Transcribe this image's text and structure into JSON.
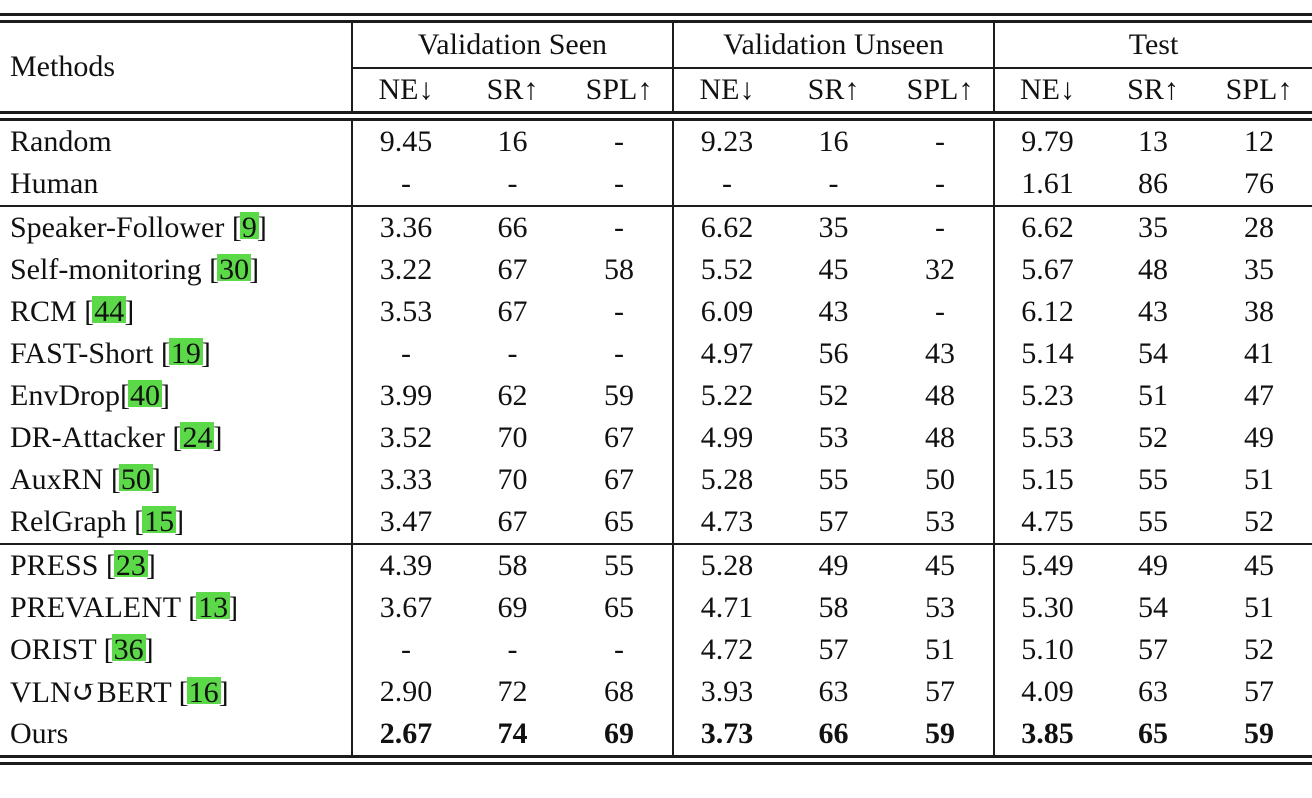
{
  "table": {
    "methods_header": "Methods",
    "citation_box_color": "#5cd948",
    "groups": [
      {
        "label": "Validation Seen",
        "metrics": [
          "NE↓",
          "SR↑",
          "SPL↑"
        ]
      },
      {
        "label": "Validation Unseen",
        "metrics": [
          "NE↓",
          "SR↑",
          "SPL↑"
        ]
      },
      {
        "label": "Test",
        "metrics": [
          "NE↓",
          "SR↑",
          "SPL↑"
        ]
      }
    ],
    "rows": [
      {
        "name": "Random",
        "cite": null,
        "space_before_cite": true,
        "bold_values": false,
        "group_start": false,
        "values": [
          "9.45",
          "16",
          "-",
          "9.23",
          "16",
          "-",
          "9.79",
          "13",
          "12"
        ]
      },
      {
        "name": "Human",
        "cite": null,
        "space_before_cite": true,
        "bold_values": false,
        "group_start": false,
        "values": [
          "-",
          "-",
          "-",
          "-",
          "-",
          "-",
          "1.61",
          "86",
          "76"
        ]
      },
      {
        "name": "Speaker-Follower",
        "cite": "9",
        "space_before_cite": true,
        "bold_values": false,
        "group_start": true,
        "values": [
          "3.36",
          "66",
          "-",
          "6.62",
          "35",
          "-",
          "6.62",
          "35",
          "28"
        ]
      },
      {
        "name": "Self-monitoring",
        "cite": "30",
        "space_before_cite": true,
        "bold_values": false,
        "group_start": false,
        "values": [
          "3.22",
          "67",
          "58",
          "5.52",
          "45",
          "32",
          "5.67",
          "48",
          "35"
        ]
      },
      {
        "name": "RCM",
        "cite": "44",
        "space_before_cite": true,
        "bold_values": false,
        "group_start": false,
        "values": [
          "3.53",
          "67",
          "-",
          "6.09",
          "43",
          "-",
          "6.12",
          "43",
          "38"
        ]
      },
      {
        "name": "FAST-Short",
        "cite": "19",
        "space_before_cite": true,
        "bold_values": false,
        "group_start": false,
        "values": [
          "-",
          "-",
          "-",
          "4.97",
          "56",
          "43",
          "5.14",
          "54",
          "41"
        ]
      },
      {
        "name": "EnvDrop",
        "cite": "40",
        "space_before_cite": false,
        "bold_values": false,
        "group_start": false,
        "values": [
          "3.99",
          "62",
          "59",
          "5.22",
          "52",
          "48",
          "5.23",
          "51",
          "47"
        ]
      },
      {
        "name": "DR-Attacker",
        "cite": "24",
        "space_before_cite": true,
        "bold_values": false,
        "group_start": false,
        "values": [
          "3.52",
          "70",
          "67",
          "4.99",
          "53",
          "48",
          "5.53",
          "52",
          "49"
        ]
      },
      {
        "name": "AuxRN",
        "cite": "50",
        "space_before_cite": true,
        "bold_values": false,
        "group_start": false,
        "values": [
          "3.33",
          "70",
          "67",
          "5.28",
          "55",
          "50",
          "5.15",
          "55",
          "51"
        ]
      },
      {
        "name": "RelGraph",
        "cite": "15",
        "space_before_cite": true,
        "bold_values": false,
        "group_start": false,
        "values": [
          "3.47",
          "67",
          "65",
          "4.73",
          "57",
          "53",
          "4.75",
          "55",
          "52"
        ]
      },
      {
        "name": "PRESS",
        "cite": "23",
        "space_before_cite": true,
        "bold_values": false,
        "group_start": true,
        "values": [
          "4.39",
          "58",
          "55",
          "5.28",
          "49",
          "45",
          "5.49",
          "49",
          "45"
        ]
      },
      {
        "name": "PREVALENT",
        "cite": "13",
        "space_before_cite": true,
        "bold_values": false,
        "group_start": false,
        "values": [
          "3.67",
          "69",
          "65",
          "4.71",
          "58",
          "53",
          "5.30",
          "54",
          "51"
        ]
      },
      {
        "name": "ORIST",
        "cite": "36",
        "space_before_cite": true,
        "bold_values": false,
        "group_start": false,
        "values": [
          "-",
          "-",
          "-",
          "4.72",
          "57",
          "51",
          "5.10",
          "57",
          "52"
        ]
      },
      {
        "name": "VLN↺BERT",
        "cite": "16",
        "space_before_cite": true,
        "bold_values": false,
        "group_start": false,
        "values": [
          "2.90",
          "72",
          "68",
          "3.93",
          "63",
          "57",
          "4.09",
          "63",
          "57"
        ]
      },
      {
        "name": "Ours",
        "cite": null,
        "space_before_cite": true,
        "bold_values": true,
        "group_start": false,
        "values": [
          "2.67",
          "74",
          "69",
          "3.73",
          "66",
          "59",
          "3.85",
          "65",
          "59"
        ]
      }
    ]
  }
}
